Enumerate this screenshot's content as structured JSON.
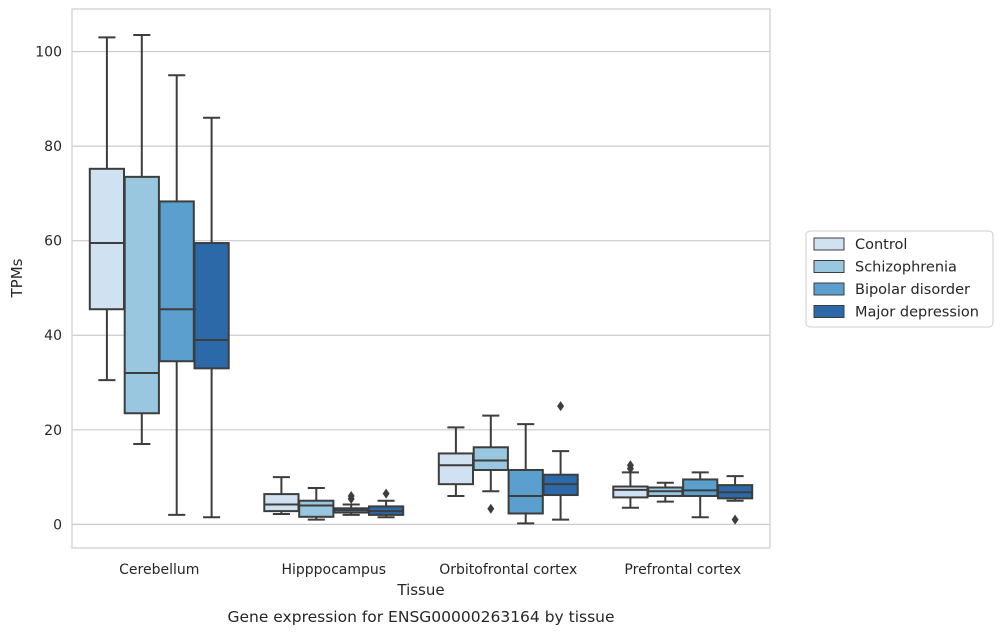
{
  "caption": "Gene expression for ENSG00000263164 by tissue",
  "chart_data": {
    "type": "box",
    "xlabel": "Tissue",
    "ylabel": "TPMs",
    "ylim": [
      -5,
      109
    ],
    "yticks": [
      0,
      20,
      40,
      60,
      80,
      100
    ],
    "grid": "horizontal",
    "legend_position": "right",
    "categories": [
      "Cerebellum",
      "Hipppocampus",
      "Orbitofrontal cortex",
      "Prefrontal cortex"
    ],
    "series": [
      {
        "name": "Control",
        "color": "#d0e1f1",
        "boxes": [
          {
            "whislo": 30.5,
            "q1": 45.5,
            "med": 59.5,
            "q3": 75.2,
            "whishi": 103,
            "fliers": []
          },
          {
            "whislo": 2.2,
            "q1": 2.8,
            "med": 4.2,
            "q3": 6.4,
            "whishi": 10.0,
            "fliers": []
          },
          {
            "whislo": 6.0,
            "q1": 8.5,
            "med": 12.5,
            "q3": 15.0,
            "whishi": 20.5,
            "fliers": []
          },
          {
            "whislo": 3.5,
            "q1": 5.7,
            "med": 7.3,
            "q3": 8.0,
            "whishi": 11.0,
            "fliers": [
              11.8,
              12.5
            ]
          }
        ]
      },
      {
        "name": "Schizophrenia",
        "color": "#9ac7e0",
        "boxes": [
          {
            "whislo": 17.0,
            "q1": 23.5,
            "med": 32.0,
            "q3": 73.5,
            "whishi": 103.5,
            "fliers": []
          },
          {
            "whislo": 1.0,
            "q1": 1.6,
            "med": 4.0,
            "q3": 5.0,
            "whishi": 7.7,
            "fliers": []
          },
          {
            "whislo": 7.0,
            "q1": 11.5,
            "med": 13.5,
            "q3": 16.3,
            "whishi": 23.0,
            "fliers": [
              3.3
            ]
          },
          {
            "whislo": 4.8,
            "q1": 6.0,
            "med": 7.0,
            "q3": 7.8,
            "whishi": 8.8,
            "fliers": []
          }
        ]
      },
      {
        "name": "Bipolar disorder",
        "color": "#5a9fcd",
        "boxes": [
          {
            "whislo": 2.0,
            "q1": 34.5,
            "med": 45.5,
            "q3": 68.3,
            "whishi": 95.0,
            "fliers": []
          },
          {
            "whislo": 2.0,
            "q1": 2.5,
            "med": 3.0,
            "q3": 3.4,
            "whishi": 4.2,
            "fliers": [
              5.4,
              6.0
            ]
          },
          {
            "whislo": 0.2,
            "q1": 2.3,
            "med": 6.0,
            "q3": 11.5,
            "whishi": 21.2,
            "fliers": []
          },
          {
            "whislo": 1.5,
            "q1": 6.0,
            "med": 7.2,
            "q3": 9.5,
            "whishi": 11.0,
            "fliers": []
          }
        ]
      },
      {
        "name": "Major depression",
        "color": "#2b69a8",
        "boxes": [
          {
            "whislo": 1.5,
            "q1": 33.0,
            "med": 39.0,
            "q3": 59.5,
            "whishi": 86.0,
            "fliers": []
          },
          {
            "whislo": 1.5,
            "q1": 2.0,
            "med": 2.8,
            "q3": 3.8,
            "whishi": 5.0,
            "fliers": [
              6.5
            ]
          },
          {
            "whislo": 1.0,
            "q1": 6.2,
            "med": 8.5,
            "q3": 10.5,
            "whishi": 15.5,
            "fliers": [
              25.0
            ]
          },
          {
            "whislo": 5.0,
            "q1": 5.5,
            "med": 6.8,
            "q3": 8.3,
            "whishi": 10.2,
            "fliers": [
              1.0
            ]
          }
        ]
      }
    ]
  }
}
